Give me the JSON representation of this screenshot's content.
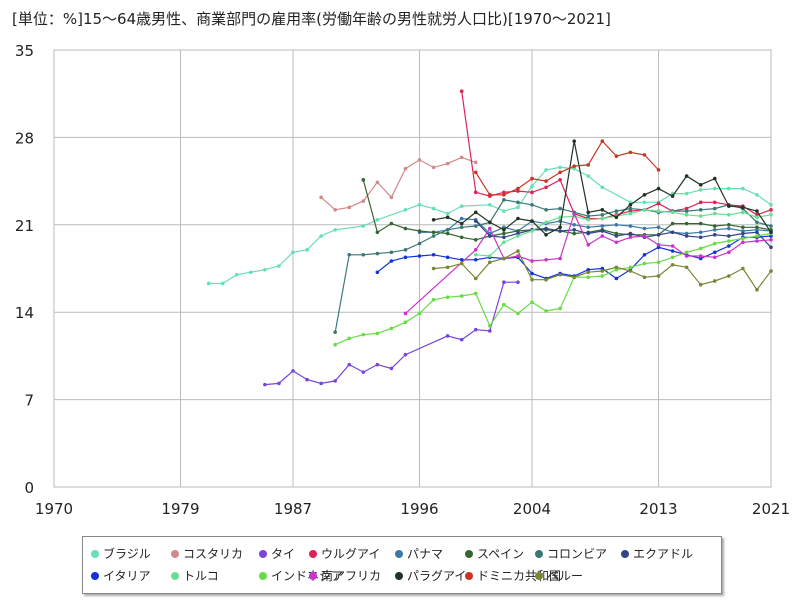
{
  "title": "[単位：%]15～64歳男性、商業部門の雇用率(労働年齢の男性就労人口比)[1970～2021]",
  "chart_data": {
    "type": "line",
    "xlim": [
      1970,
      2021
    ],
    "ylim": [
      0,
      35
    ],
    "xticks": [
      1970,
      1979,
      1987,
      1996,
      2004,
      2013,
      2021
    ],
    "yticks": [
      0,
      7,
      14,
      21,
      28,
      35
    ],
    "grid": true,
    "legend_position": "bottom",
    "series": [
      {
        "name": "ブラジル",
        "color": "#66e0b0",
        "x": [
          1981,
          1982,
          1983,
          1984,
          1985,
          1986,
          1987,
          1988,
          1989,
          1990,
          1992,
          1993,
          1995,
          1996,
          1997,
          1998,
          1999,
          2001,
          2002,
          2003,
          2004,
          2005,
          2006,
          2007,
          2008,
          2009,
          2011,
          2012,
          2013,
          2014,
          2015,
          2016,
          2017,
          2018,
          2019,
          2020,
          2021
        ],
        "y": [
          16.3,
          16.3,
          17.0,
          17.2,
          17.4,
          17.7,
          18.8,
          19.0,
          20.1,
          20.6,
          20.9,
          21.4,
          22.2,
          22.6,
          22.3,
          21.9,
          22.5,
          22.6,
          22.1,
          22.4,
          24.1,
          25.4,
          25.6,
          25.5,
          24.9,
          24.0,
          22.8,
          22.8,
          22.8,
          23.5,
          23.5,
          23.8,
          23.9,
          23.9,
          23.9,
          23.4,
          22.6
        ]
      },
      {
        "name": "コスタリカ",
        "color": "#d08a8a",
        "x": [
          1989,
          1990,
          1991,
          1992,
          1993,
          1994,
          1995,
          1996,
          1997,
          1998,
          1999,
          2000
        ],
        "y": [
          23.2,
          22.2,
          22.4,
          22.9,
          24.4,
          23.2,
          25.5,
          26.2,
          25.6,
          25.9,
          26.4,
          26.0
        ]
      },
      {
        "name": "タイ",
        "color": "#7744dd",
        "x": [
          1985,
          1986,
          1987,
          1988,
          1989,
          1990,
          1991,
          1992,
          1993,
          1994,
          1995,
          1998,
          1999,
          2000,
          2001,
          2002,
          2003
        ],
        "y": [
          8.2,
          8.3,
          9.3,
          8.6,
          8.3,
          8.5,
          9.8,
          9.2,
          9.8,
          9.5,
          10.6,
          12.1,
          11.8,
          12.6,
          12.5,
          16.4,
          16.4
        ]
      },
      {
        "name": "ウルグアイ",
        "color": "#dd2255",
        "x": [
          1999,
          2000,
          2001,
          2002,
          2003,
          2004,
          2005,
          2006,
          2007,
          2008,
          2009,
          2010,
          2011,
          2012,
          2013,
          2014,
          2015,
          2016,
          2017,
          2018,
          2019,
          2020,
          2021
        ],
        "y": [
          31.7,
          23.6,
          23.3,
          23.6,
          23.7,
          23.6,
          24.0,
          24.6,
          21.9,
          21.5,
          21.5,
          21.8,
          22.1,
          22.2,
          22.7,
          22.1,
          22.3,
          22.8,
          22.8,
          22.6,
          22.5,
          21.8,
          22.2
        ]
      },
      {
        "name": "パナマ",
        "color": "#3a7aaa",
        "x": [
          1996,
          1997,
          1998,
          1999,
          2000,
          2001,
          2002,
          2003,
          2004,
          2005,
          2006,
          2007,
          2008,
          2009,
          2010,
          2011,
          2012,
          2013,
          2014,
          2015,
          2016,
          2017,
          2018,
          2019,
          2020,
          2021
        ],
        "y": [
          20.4,
          20.4,
          20.6,
          21.5,
          21.4,
          20.3,
          20.8,
          20.5,
          21.3,
          21.1,
          21.3,
          21.0,
          20.8,
          20.9,
          21.0,
          20.9,
          20.7,
          20.8,
          20.4,
          20.3,
          20.4,
          20.6,
          20.7,
          20.5,
          20.6,
          20.5
        ]
      },
      {
        "name": "スペイン",
        "color": "#336633",
        "x": [
          1992,
          1993,
          1994,
          1995,
          1996,
          1997,
          1998,
          1999,
          2000,
          2001,
          2002,
          2003,
          2004,
          2005,
          2006,
          2007,
          2008,
          2009,
          2010,
          2011,
          2012,
          2013,
          2014,
          2015,
          2016,
          2017,
          2018,
          2019,
          2020,
          2021
        ],
        "y": [
          24.6,
          20.4,
          21.1,
          20.7,
          20.5,
          20.4,
          20.3,
          20.0,
          19.8,
          20.1,
          20.3,
          20.5,
          20.6,
          20.6,
          20.5,
          20.3,
          20.4,
          20.6,
          20.3,
          20.2,
          20.2,
          20.2,
          21.1,
          21.1,
          21.1,
          20.9,
          21.0,
          20.8,
          20.8,
          20.6
        ]
      },
      {
        "name": "コロンビア",
        "color": "#3a7777",
        "x": [
          1990,
          1991,
          1992,
          1993,
          1994,
          1995,
          1996,
          1997,
          1998,
          1999,
          2000,
          2001,
          2002,
          2003,
          2004,
          2005,
          2006,
          2007,
          2008,
          2009,
          2010,
          2011,
          2012,
          2013,
          2014,
          2015,
          2016,
          2017,
          2018,
          2019,
          2020,
          2021
        ],
        "y": [
          12.4,
          18.6,
          18.6,
          18.7,
          18.8,
          19.0,
          19.5,
          20.1,
          20.6,
          20.8,
          20.9,
          21.2,
          23.0,
          22.8,
          22.6,
          22.2,
          22.3,
          22.0,
          21.7,
          21.8,
          22.1,
          22.3,
          22.2,
          22.0,
          22.1,
          22.1,
          22.2,
          22.3,
          22.6,
          22.3,
          21.2,
          20.9
        ]
      },
      {
        "name": "エクアドル",
        "color": "#334488",
        "x": [
          2000,
          2001,
          2002,
          2003,
          2004,
          2005,
          2006,
          2007,
          2008,
          2009,
          2010,
          2011,
          2012,
          2013,
          2014,
          2015,
          2016,
          2017,
          2018,
          2019,
          2020,
          2021
        ],
        "y": [
          21.3,
          20.1,
          20.0,
          20.3,
          20.6,
          20.7,
          20.5,
          20.6,
          20.3,
          20.5,
          20.1,
          20.3,
          20.0,
          20.2,
          20.4,
          20.1,
          20.0,
          20.2,
          20.1,
          20.3,
          20.4,
          19.2
        ]
      },
      {
        "name": "イタリア",
        "color": "#1133dd",
        "x": [
          1993,
          1994,
          1995,
          1996,
          1997,
          1998,
          1999,
          2000,
          2001,
          2002,
          2003,
          2004,
          2005,
          2006,
          2007,
          2008,
          2009,
          2010,
          2011,
          2012,
          2013,
          2014,
          2015,
          2016,
          2017,
          2018,
          2019,
          2020,
          2021
        ],
        "y": [
          17.2,
          18.1,
          18.4,
          18.5,
          18.6,
          18.4,
          18.2,
          18.2,
          18.4,
          18.3,
          18.4,
          17.1,
          16.7,
          17.1,
          16.9,
          17.4,
          17.5,
          16.7,
          17.4,
          18.6,
          19.2,
          18.9,
          18.6,
          18.3,
          18.8,
          19.3,
          20.0,
          20.0,
          20.1
        ]
      },
      {
        "name": "トルコ",
        "color": "#66e090",
        "x": [
          2000,
          2001,
          2002,
          2003,
          2004,
          2005,
          2006,
          2007,
          2008,
          2009,
          2010,
          2011,
          2012,
          2013,
          2014,
          2015,
          2016,
          2017,
          2018,
          2019,
          2020,
          2021
        ],
        "y": [
          18.6,
          18.5,
          19.6,
          20.1,
          20.5,
          21.2,
          21.6,
          21.7,
          21.4,
          21.5,
          21.7,
          21.9,
          22.2,
          22.1,
          22.0,
          21.8,
          21.7,
          21.9,
          21.8,
          22.0,
          21.6,
          21.8
        ]
      },
      {
        "name": "インドネシア",
        "color": "#66dd44",
        "x": [
          1990,
          1991,
          1992,
          1993,
          1994,
          1995,
          1996,
          1997,
          1998,
          1999,
          2000,
          2001,
          2002,
          2003,
          2004,
          2005,
          2006,
          2007,
          2008,
          2009,
          2010,
          2011,
          2012,
          2013,
          2014,
          2015,
          2016,
          2017,
          2018,
          2019,
          2020,
          2021
        ],
        "y": [
          11.4,
          11.9,
          12.2,
          12.3,
          12.7,
          13.2,
          13.9,
          15.0,
          15.2,
          15.3,
          15.5,
          12.9,
          14.6,
          13.9,
          14.8,
          14.1,
          14.3,
          16.8,
          16.8,
          16.9,
          17.4,
          17.6,
          17.9,
          18.0,
          18.4,
          18.8,
          19.1,
          19.5,
          19.7,
          19.9,
          20.1,
          20.3
        ]
      },
      {
        "name": "南アフリカ",
        "color": "#cc33cc",
        "x": [
          1995,
          2000,
          2001,
          2002,
          2003,
          2004,
          2005,
          2006,
          2007,
          2008,
          2009,
          2010,
          2011,
          2012,
          2013,
          2014,
          2015,
          2016,
          2017,
          2018,
          2019,
          2020,
          2021
        ],
        "y": [
          13.9,
          19.0,
          20.7,
          18.3,
          18.5,
          18.1,
          18.2,
          18.3,
          21.9,
          19.4,
          20.1,
          19.6,
          20.0,
          20.1,
          19.4,
          19.3,
          18.5,
          18.5,
          18.4,
          18.8,
          19.6,
          19.7,
          19.8
        ]
      },
      {
        "name": "パラグアイ",
        "color": "#223322",
        "x": [
          1997,
          1998,
          1999,
          2000,
          2001,
          2002,
          2003,
          2004,
          2005,
          2006,
          2007,
          2008,
          2009,
          2010,
          2011,
          2012,
          2013,
          2014,
          2015,
          2016,
          2017,
          2018,
          2019,
          2020,
          2021
        ],
        "y": [
          21.4,
          21.6,
          21.1,
          22.0,
          21.2,
          20.6,
          21.5,
          21.3,
          20.2,
          20.8,
          27.7,
          22.0,
          22.2,
          21.6,
          22.6,
          23.4,
          23.9,
          23.3,
          24.9,
          24.2,
          24.7,
          22.5,
          22.4,
          22.1,
          20.4
        ]
      },
      {
        "name": "ドミニカ共和国",
        "color": "#cc3322",
        "x": [
          2000,
          2001,
          2002,
          2003,
          2004,
          2005,
          2006,
          2007,
          2008,
          2009,
          2010,
          2011,
          2012,
          2013
        ],
        "y": [
          25.2,
          23.4,
          23.4,
          23.9,
          24.7,
          24.5,
          25.2,
          25.7,
          25.8,
          27.7,
          26.5,
          26.8,
          26.6,
          25.4
        ]
      },
      {
        "name": "ペルー",
        "color": "#778833",
        "x": [
          1997,
          1998,
          1999,
          2000,
          2001,
          2002,
          2003,
          2004,
          2005,
          2006,
          2007,
          2008,
          2009,
          2010,
          2011,
          2012,
          2013,
          2014,
          2015,
          2016,
          2017,
          2018,
          2019,
          2020,
          2021
        ],
        "y": [
          17.5,
          17.6,
          17.9,
          16.7,
          18.0,
          18.3,
          18.9,
          16.6,
          16.6,
          17.0,
          16.8,
          17.2,
          17.3,
          17.6,
          17.3,
          16.8,
          16.9,
          17.8,
          17.6,
          16.2,
          16.5,
          16.9,
          17.5,
          15.8,
          17.3
        ]
      }
    ]
  }
}
